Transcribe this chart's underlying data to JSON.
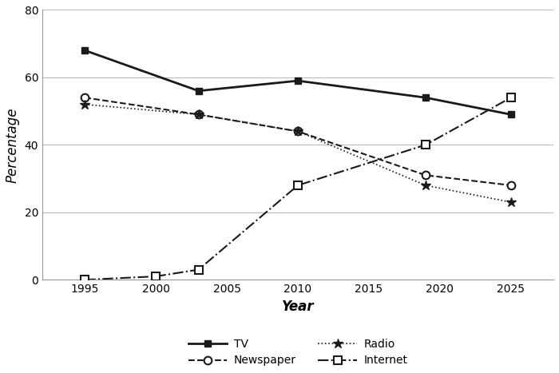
{
  "years_tv": [
    1995,
    2003,
    2010,
    2019,
    2025
  ],
  "values_tv": [
    68,
    56,
    59,
    54,
    49
  ],
  "years_newspaper": [
    1995,
    2003,
    2010,
    2019,
    2025
  ],
  "values_newspaper": [
    54,
    49,
    44,
    31,
    28
  ],
  "years_radio": [
    1995,
    2003,
    2010,
    2019,
    2025
  ],
  "values_radio": [
    52,
    49,
    44,
    28,
    23
  ],
  "years_internet": [
    1995,
    2000,
    2003,
    2010,
    2019,
    2025
  ],
  "values_internet": [
    0,
    1,
    3,
    28,
    40,
    54
  ],
  "xlim": [
    1992,
    2028
  ],
  "ylim": [
    0,
    80
  ],
  "xticks": [
    1995,
    2000,
    2005,
    2010,
    2015,
    2020,
    2025
  ],
  "yticks": [
    0,
    20,
    40,
    60,
    80
  ],
  "xlabel": "Year",
  "ylabel": "Percentage",
  "background_color": "#ffffff",
  "line_color": "#1a1a1a",
  "grid_color": "#bbbbbb"
}
